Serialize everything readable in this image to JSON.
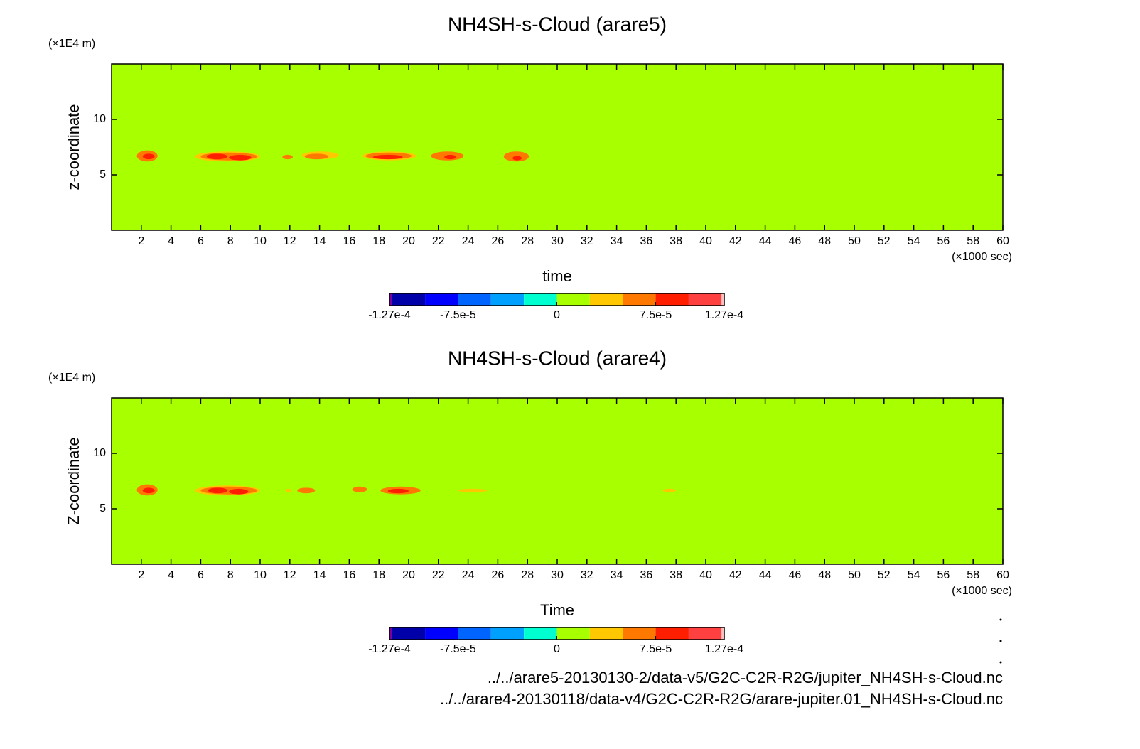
{
  "chart_data": [
    {
      "type": "contour",
      "title": "NH4SH-s-Cloud (arare5)",
      "x_label": "time",
      "y_label": "z-coordinate",
      "x_unit": "(×1000 sec)",
      "y_unit": "(×1E4 m)",
      "xlim": [
        0,
        60
      ],
      "xticks": [
        2,
        4,
        6,
        8,
        10,
        12,
        14,
        16,
        18,
        20,
        22,
        24,
        26,
        28,
        30,
        32,
        34,
        36,
        38,
        40,
        42,
        44,
        46,
        48,
        50,
        52,
        54,
        56,
        58,
        60
      ],
      "ylim": [
        0,
        15
      ],
      "yticks": [
        5,
        10
      ],
      "field_value": 0,
      "regions": [
        {
          "x": [
            1.7,
            3.1
          ],
          "y": [
            6.2,
            7.2
          ],
          "value": 5e-05
        },
        {
          "x": [
            2.1,
            2.9
          ],
          "y": [
            6.4,
            6.9
          ],
          "value": 7.5e-05
        },
        {
          "x": [
            5.6,
            10.0
          ],
          "y": [
            6.2,
            7.1
          ],
          "value": 2.5e-05
        },
        {
          "x": [
            6.0,
            9.8
          ],
          "y": [
            6.3,
            7.0
          ],
          "value": 5e-05
        },
        {
          "x": [
            6.4,
            7.8
          ],
          "y": [
            6.4,
            6.9
          ],
          "value": 7.5e-05
        },
        {
          "x": [
            7.9,
            9.4
          ],
          "y": [
            6.3,
            6.8
          ],
          "value": 7.5e-05
        },
        {
          "x": [
            11.5,
            12.2
          ],
          "y": [
            6.4,
            6.8
          ],
          "value": 5e-05
        },
        {
          "x": [
            12.8,
            15.3
          ],
          "y": [
            6.4,
            7.1
          ],
          "value": 2.5e-05
        },
        {
          "x": [
            13.0,
            14.6
          ],
          "y": [
            6.4,
            6.9
          ],
          "value": 5e-05
        },
        {
          "x": [
            16.9,
            20.5
          ],
          "y": [
            6.3,
            7.1
          ],
          "value": 2.5e-05
        },
        {
          "x": [
            17.1,
            20.2
          ],
          "y": [
            6.4,
            7.0
          ],
          "value": 5e-05
        },
        {
          "x": [
            17.6,
            19.6
          ],
          "y": [
            6.4,
            6.8
          ],
          "value": 7.5e-05
        },
        {
          "x": [
            21.5,
            23.7
          ],
          "y": [
            6.3,
            7.1
          ],
          "value": 5e-05
        },
        {
          "x": [
            22.4,
            23.2
          ],
          "y": [
            6.4,
            6.8
          ],
          "value": 7.5e-05
        },
        {
          "x": [
            26.4,
            28.1
          ],
          "y": [
            6.2,
            7.1
          ],
          "value": 5e-05
        },
        {
          "x": [
            27.0,
            27.6
          ],
          "y": [
            6.3,
            6.7
          ],
          "value": 7.5e-05
        }
      ],
      "colorbar": {
        "levels": [
          -0.000127,
          -0.000125,
          -0.0001,
          -7.5e-05,
          -5e-05,
          -2.5e-05,
          0,
          2.5e-05,
          5e-05,
          7.5e-05,
          0.0001,
          0.000125,
          0.000127
        ],
        "colors": [
          "#7a00a0",
          "#0000a8",
          "#0000ff",
          "#0064ff",
          "#00a0ff",
          "#00ffd0",
          "#a8ff00",
          "#ffc800",
          "#ff7800",
          "#ff1e00",
          "#ff4040",
          "#ffc0c0"
        ],
        "ticks": [
          {
            "value": -0.000127,
            "label": "-1.27e-4"
          },
          {
            "value": -7.5e-05,
            "label": "-7.5e-5"
          },
          0,
          {
            "value": 7.5e-05,
            "label": "7.5e-5"
          },
          {
            "value": 0.000127,
            "label": "1.27e-4"
          }
        ]
      }
    },
    {
      "type": "contour",
      "title": "NH4SH-s-Cloud (arare4)",
      "x_label": "Time",
      "y_label": "Z-coordinate",
      "x_unit": "(×1000 sec)",
      "y_unit": "(×1E4 m)",
      "xlim": [
        0,
        60
      ],
      "xticks": [
        2,
        4,
        6,
        8,
        10,
        12,
        14,
        16,
        18,
        20,
        22,
        24,
        26,
        28,
        30,
        32,
        34,
        36,
        38,
        40,
        42,
        44,
        46,
        48,
        50,
        52,
        54,
        56,
        58,
        60
      ],
      "ylim": [
        0,
        15
      ],
      "yticks": [
        5,
        10
      ],
      "field_value": 0,
      "regions": [
        {
          "x": [
            1.7,
            3.1
          ],
          "y": [
            6.2,
            7.2
          ],
          "value": 5e-05
        },
        {
          "x": [
            2.1,
            2.9
          ],
          "y": [
            6.4,
            6.9
          ],
          "value": 7.5e-05
        },
        {
          "x": [
            5.6,
            10.0
          ],
          "y": [
            6.2,
            7.1
          ],
          "value": 2.5e-05
        },
        {
          "x": [
            6.0,
            9.8
          ],
          "y": [
            6.3,
            7.0
          ],
          "value": 5e-05
        },
        {
          "x": [
            6.5,
            7.8
          ],
          "y": [
            6.4,
            6.9
          ],
          "value": 7.5e-05
        },
        {
          "x": [
            7.9,
            9.2
          ],
          "y": [
            6.3,
            6.8
          ],
          "value": 7.5e-05
        },
        {
          "x": [
            11.7,
            12.1
          ],
          "y": [
            6.5,
            6.8
          ],
          "value": 2.5e-05
        },
        {
          "x": [
            12.5,
            13.7
          ],
          "y": [
            6.4,
            6.9
          ],
          "value": 5e-05
        },
        {
          "x": [
            16.2,
            17.2
          ],
          "y": [
            6.5,
            7.0
          ],
          "value": 5e-05
        },
        {
          "x": [
            18.1,
            20.8
          ],
          "y": [
            6.3,
            7.0
          ],
          "value": 5e-05
        },
        {
          "x": [
            18.6,
            20.0
          ],
          "y": [
            6.4,
            6.8
          ],
          "value": 7.5e-05
        },
        {
          "x": [
            23.3,
            25.3
          ],
          "y": [
            6.5,
            6.8
          ],
          "value": 2.5e-05
        },
        {
          "x": [
            37.1,
            38.0
          ],
          "y": [
            6.5,
            6.8
          ],
          "value": 2.5e-05
        }
      ],
      "colorbar": {
        "levels": [
          -0.000127,
          -0.000125,
          -0.0001,
          -7.5e-05,
          -5e-05,
          -2.5e-05,
          0,
          2.5e-05,
          5e-05,
          7.5e-05,
          0.0001,
          0.000125,
          0.000127
        ],
        "colors": [
          "#7a00a0",
          "#0000a8",
          "#0000ff",
          "#0064ff",
          "#00a0ff",
          "#00ffd0",
          "#a8ff00",
          "#ffc800",
          "#ff7800",
          "#ff1e00",
          "#ff4040",
          "#ffc0c0"
        ],
        "ticks": [
          {
            "value": -0.000127,
            "label": "-1.27e-4"
          },
          {
            "value": -7.5e-05,
            "label": "-7.5e-5"
          },
          0,
          {
            "value": 7.5e-05,
            "label": "7.5e-5"
          },
          {
            "value": 0.000127,
            "label": "1.27e-4"
          }
        ]
      }
    }
  ],
  "footer": [
    "../../arare5-20130130-2/data-v5/G2C-C2R-R2G/jupiter_NH4SH-s-Cloud.nc",
    "../../arare4-20130118/data-v4/G2C-C2R-R2G/arare-jupiter.01_NH4SH-s-Cloud.nc"
  ]
}
